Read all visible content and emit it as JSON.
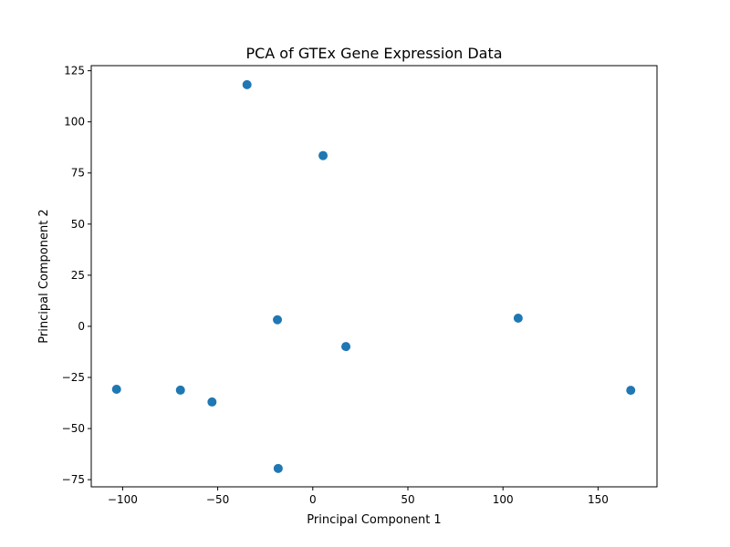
{
  "chart_data": {
    "type": "scatter",
    "title": "PCA of GTEx Gene Expression Data",
    "xlabel": "Principal Component 1",
    "ylabel": "Principal Component 2",
    "xlim": [
      -116.5,
      181.0
    ],
    "ylim": [
      -78.5,
      127.5
    ],
    "xticks": [
      -100,
      -50,
      0,
      50,
      100,
      150
    ],
    "yticks": [
      -75,
      -50,
      -25,
      0,
      25,
      50,
      75,
      100,
      125
    ],
    "grid": false,
    "legend": "none",
    "marker_color": "#1f77b4",
    "points": [
      {
        "x": -103.2,
        "y": -30.8
      },
      {
        "x": -69.6,
        "y": -31.2
      },
      {
        "x": -53.0,
        "y": -37.0
      },
      {
        "x": -34.6,
        "y": 118.2
      },
      {
        "x": -18.6,
        "y": 3.2
      },
      {
        "x": -18.2,
        "y": -69.5
      },
      {
        "x": 5.4,
        "y": 83.5
      },
      {
        "x": 17.4,
        "y": -9.9
      },
      {
        "x": 108.0,
        "y": 4.0
      },
      {
        "x": 167.2,
        "y": -31.3
      }
    ]
  }
}
